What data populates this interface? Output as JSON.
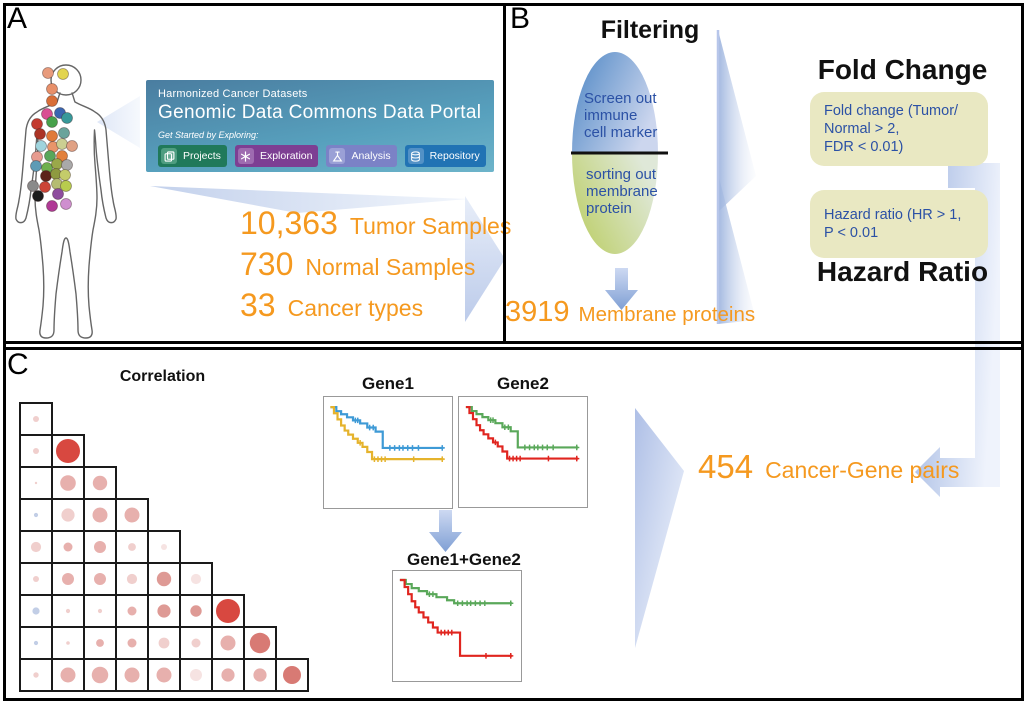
{
  "palette": {
    "accent_orange": "#f5991f",
    "criteria_text_blue": "#2b51a5",
    "criteria_box_khaki": "#e9e8c2",
    "flow_arrow_blue": "#aabfe6",
    "matrix_colors": {
      "v": "#f6e3e2",
      "l": "#f0cfcd",
      "m": "#e7b0ad",
      "d": "#de9a95",
      "D": "#d87a74",
      "S": "#d84840",
      "b": "#c2cee6"
    }
  },
  "panels": {
    "a": {
      "label": "A",
      "gdc_card": {
        "subtitle": "Harmonized Cancer Datasets",
        "title": "Genomic Data Commons Data Portal",
        "tagline": "Get Started by Exploring:",
        "buttons": [
          {
            "label": "Projects",
            "color": "#20795a",
            "chip": "#4e9d80",
            "icon": "projects-icon"
          },
          {
            "label": "Exploration",
            "color": "#7d3f93",
            "chip": "#9e6bb0",
            "icon": "exploration-icon"
          },
          {
            "label": "Analysis",
            "color": "#7b82c6",
            "chip": "#9aa0d6",
            "icon": "analysis-icon"
          },
          {
            "label": "Repository",
            "color": "#2173b4",
            "chip": "#5291c6",
            "icon": "repository-icon"
          }
        ]
      },
      "stats": [
        {
          "value": "10,363",
          "label": "Tumor Samples"
        },
        {
          "value": "730",
          "label": "Normal Samples"
        },
        {
          "value": "33",
          "label": "Cancer types"
        }
      ],
      "body_dots": [
        [
          48,
          73,
          "#e89b7c"
        ],
        [
          63,
          74,
          "#e2d44f"
        ],
        [
          52,
          89,
          "#e8906a"
        ],
        [
          52,
          101,
          "#d96f38"
        ],
        [
          47,
          114,
          "#d94f93"
        ],
        [
          60,
          113,
          "#3a66b0"
        ],
        [
          37,
          124,
          "#c33a2f"
        ],
        [
          52,
          122,
          "#47a14b"
        ],
        [
          67,
          118,
          "#37999a"
        ],
        [
          40,
          134,
          "#ab3425"
        ],
        [
          52,
          136,
          "#e07a3a"
        ],
        [
          64,
          133,
          "#6aa39b"
        ],
        [
          41,
          146,
          "#9fd4dd"
        ],
        [
          53,
          147,
          "#e8956a"
        ],
        [
          62,
          144,
          "#cbcf92"
        ],
        [
          72,
          146,
          "#e0a184"
        ],
        [
          37,
          157,
          "#e79b8f"
        ],
        [
          50,
          156,
          "#58a75a"
        ],
        [
          62,
          156,
          "#e2803c"
        ],
        [
          36,
          166,
          "#5e9bb5"
        ],
        [
          47,
          168,
          "#6fb04e"
        ],
        [
          57,
          164,
          "#9aa84a"
        ],
        [
          67,
          165,
          "#a9a9a9"
        ],
        [
          46,
          176,
          "#5c2219"
        ],
        [
          56,
          174,
          "#8e9a40"
        ],
        [
          65,
          175,
          "#c4cc6a"
        ],
        [
          33,
          186,
          "#8a8a8a"
        ],
        [
          45,
          187,
          "#cc4437"
        ],
        [
          57,
          184,
          "#b5bc72"
        ],
        [
          66,
          186,
          "#b8cc4e"
        ],
        [
          38,
          196,
          "#1b1b1b"
        ],
        [
          58,
          194,
          "#8e4d9e"
        ],
        [
          52,
          206,
          "#b03a96"
        ],
        [
          66,
          204,
          "#cf8fcf"
        ]
      ]
    },
    "b": {
      "label": "B",
      "filtering_title": "Filtering",
      "ellipse_top_lines": [
        "Screen out",
        "immune",
        "cell marker"
      ],
      "ellipse_bottom_lines": [
        "sorting out",
        "membrane",
        "protein"
      ],
      "result_value": "3919",
      "result_label": "Membrane proteins",
      "fold_change_title": "Fold Change",
      "fold_change_box_lines": [
        "Fold change (Tumor/",
        "Normal > 2,",
        "FDR < 0.01)"
      ],
      "hazard_box_lines": [
        "Hazard ratio (HR > 1,",
        "P < 0.01"
      ],
      "hazard_title": "Hazard Ratio"
    },
    "c": {
      "label": "C",
      "correlation_title": "Correlation",
      "correlation_matrix": {
        "type": "bubble-triangle",
        "rows": [
          [
            [
              0.2,
              "l"
            ]
          ],
          [
            [
              0.2,
              "l"
            ],
            [
              0.8,
              "S"
            ]
          ],
          [
            [
              0.08,
              "l"
            ],
            [
              0.52,
              "m"
            ],
            [
              0.48,
              "m"
            ]
          ],
          [
            [
              0.14,
              "b"
            ],
            [
              0.44,
              "l"
            ],
            [
              0.5,
              "m"
            ],
            [
              0.5,
              "m"
            ]
          ],
          [
            [
              0.34,
              "l"
            ],
            [
              0.3,
              "m"
            ],
            [
              0.4,
              "m"
            ],
            [
              0.26,
              "l"
            ],
            [
              0.2,
              "v"
            ]
          ],
          [
            [
              0.2,
              "l"
            ],
            [
              0.4,
              "m"
            ],
            [
              0.4,
              "m"
            ],
            [
              0.34,
              "l"
            ],
            [
              0.48,
              "d"
            ],
            [
              0.34,
              "v"
            ]
          ],
          [
            [
              0.24,
              "b"
            ],
            [
              0.14,
              "l"
            ],
            [
              0.14,
              "l"
            ],
            [
              0.3,
              "m"
            ],
            [
              0.44,
              "d"
            ],
            [
              0.38,
              "d"
            ],
            [
              0.8,
              "S"
            ]
          ],
          [
            [
              0.14,
              "b"
            ],
            [
              0.12,
              "l"
            ],
            [
              0.26,
              "m"
            ],
            [
              0.3,
              "m"
            ],
            [
              0.36,
              "l"
            ],
            [
              0.3,
              "l"
            ],
            [
              0.5,
              "m"
            ],
            [
              0.68,
              "D"
            ]
          ],
          [
            [
              0.18,
              "l"
            ],
            [
              0.5,
              "m"
            ],
            [
              0.55,
              "m"
            ],
            [
              0.5,
              "m"
            ],
            [
              0.5,
              "m"
            ],
            [
              0.4,
              "v"
            ],
            [
              0.44,
              "m"
            ],
            [
              0.44,
              "m"
            ],
            [
              0.6,
              "D"
            ]
          ]
        ]
      },
      "km_plots": [
        {
          "title": "Gene1",
          "series": [
            {
              "color": "#3e9ad6",
              "steps": [
                [
                  0.02,
                  0.06
                ],
                [
                  0.07,
                  0.1
                ],
                [
                  0.11,
                  0.13
                ],
                [
                  0.16,
                  0.16
                ],
                [
                  0.21,
                  0.19
                ],
                [
                  0.27,
                  0.22
                ],
                [
                  0.33,
                  0.26
                ],
                [
                  0.4,
                  0.3
                ],
                [
                  0.46,
                  0.46
                ],
                [
                  0.97,
                  0.46
                ]
              ],
              "ticks": [
                [
                  0.23,
                  0.19
                ],
                [
                  0.25,
                  0.19
                ],
                [
                  0.35,
                  0.26
                ],
                [
                  0.38,
                  0.26
                ],
                [
                  0.52,
                  0.46
                ],
                [
                  0.56,
                  0.46
                ],
                [
                  0.6,
                  0.46
                ],
                [
                  0.63,
                  0.46
                ],
                [
                  0.67,
                  0.46
                ],
                [
                  0.71,
                  0.46
                ],
                [
                  0.76,
                  0.46
                ],
                [
                  0.96,
                  0.46
                ]
              ]
            },
            {
              "color": "#e5b32c",
              "steps": [
                [
                  0.02,
                  0.06
                ],
                [
                  0.05,
                  0.12
                ],
                [
                  0.08,
                  0.18
                ],
                [
                  0.11,
                  0.24
                ],
                [
                  0.14,
                  0.29
                ],
                [
                  0.17,
                  0.33
                ],
                [
                  0.21,
                  0.37
                ],
                [
                  0.25,
                  0.41
                ],
                [
                  0.29,
                  0.45
                ],
                [
                  0.33,
                  0.5
                ],
                [
                  0.37,
                  0.57
                ],
                [
                  0.97,
                  0.57
                ]
              ],
              "ticks": [
                [
                  0.27,
                  0.41
                ],
                [
                  0.39,
                  0.57
                ],
                [
                  0.42,
                  0.57
                ],
                [
                  0.45,
                  0.57
                ],
                [
                  0.48,
                  0.57
                ],
                [
                  0.72,
                  0.57
                ],
                [
                  0.96,
                  0.57
                ]
              ]
            }
          ]
        },
        {
          "title": "Gene2",
          "series": [
            {
              "color": "#5aa85a",
              "steps": [
                [
                  0.02,
                  0.06
                ],
                [
                  0.07,
                  0.1
                ],
                [
                  0.11,
                  0.13
                ],
                [
                  0.16,
                  0.16
                ],
                [
                  0.21,
                  0.19
                ],
                [
                  0.27,
                  0.22
                ],
                [
                  0.33,
                  0.26
                ],
                [
                  0.4,
                  0.3
                ],
                [
                  0.46,
                  0.46
                ],
                [
                  0.97,
                  0.46
                ]
              ],
              "ticks": [
                [
                  0.23,
                  0.19
                ],
                [
                  0.25,
                  0.19
                ],
                [
                  0.35,
                  0.26
                ],
                [
                  0.38,
                  0.26
                ],
                [
                  0.52,
                  0.46
                ],
                [
                  0.56,
                  0.46
                ],
                [
                  0.6,
                  0.46
                ],
                [
                  0.63,
                  0.46
                ],
                [
                  0.67,
                  0.46
                ],
                [
                  0.71,
                  0.46
                ],
                [
                  0.76,
                  0.46
                ],
                [
                  0.96,
                  0.46
                ]
              ]
            },
            {
              "color": "#e0251f",
              "steps": [
                [
                  0.02,
                  0.06
                ],
                [
                  0.05,
                  0.12
                ],
                [
                  0.08,
                  0.18
                ],
                [
                  0.11,
                  0.24
                ],
                [
                  0.14,
                  0.29
                ],
                [
                  0.17,
                  0.33
                ],
                [
                  0.21,
                  0.37
                ],
                [
                  0.25,
                  0.41
                ],
                [
                  0.29,
                  0.45
                ],
                [
                  0.33,
                  0.5
                ],
                [
                  0.37,
                  0.57
                ],
                [
                  0.97,
                  0.57
                ]
              ],
              "ticks": [
                [
                  0.27,
                  0.41
                ],
                [
                  0.39,
                  0.57
                ],
                [
                  0.42,
                  0.57
                ],
                [
                  0.45,
                  0.57
                ],
                [
                  0.48,
                  0.57
                ],
                [
                  0.72,
                  0.57
                ],
                [
                  0.96,
                  0.57
                ]
              ]
            }
          ]
        },
        {
          "title": "Gene1+Gene2",
          "series": [
            {
              "color": "#5aa85a",
              "steps": [
                [
                  0.02,
                  0.05
                ],
                [
                  0.07,
                  0.09
                ],
                [
                  0.12,
                  0.13
                ],
                [
                  0.18,
                  0.16
                ],
                [
                  0.25,
                  0.19
                ],
                [
                  0.33,
                  0.22
                ],
                [
                  0.42,
                  0.25
                ],
                [
                  0.48,
                  0.28
                ],
                [
                  0.97,
                  0.28
                ]
              ],
              "ticks": [
                [
                  0.27,
                  0.19
                ],
                [
                  0.3,
                  0.19
                ],
                [
                  0.51,
                  0.28
                ],
                [
                  0.55,
                  0.28
                ],
                [
                  0.59,
                  0.28
                ],
                [
                  0.62,
                  0.28
                ],
                [
                  0.66,
                  0.28
                ],
                [
                  0.7,
                  0.28
                ],
                [
                  0.74,
                  0.28
                ],
                [
                  0.96,
                  0.28
                ]
              ]
            },
            {
              "color": "#e0251f",
              "steps": [
                [
                  0.02,
                  0.05
                ],
                [
                  0.06,
                  0.12
                ],
                [
                  0.09,
                  0.19
                ],
                [
                  0.12,
                  0.26
                ],
                [
                  0.15,
                  0.32
                ],
                [
                  0.18,
                  0.37
                ],
                [
                  0.22,
                  0.42
                ],
                [
                  0.26,
                  0.47
                ],
                [
                  0.3,
                  0.52
                ],
                [
                  0.34,
                  0.57
                ],
                [
                  0.5,
                  0.57
                ],
                [
                  0.53,
                  0.8
                ],
                [
                  0.97,
                  0.8
                ]
              ],
              "ticks": [
                [
                  0.37,
                  0.57
                ],
                [
                  0.4,
                  0.57
                ],
                [
                  0.43,
                  0.57
                ],
                [
                  0.46,
                  0.57
                ],
                [
                  0.75,
                  0.8
                ],
                [
                  0.96,
                  0.8
                ]
              ]
            }
          ]
        }
      ],
      "result_value": "454",
      "result_label": "Cancer-Gene pairs"
    }
  }
}
